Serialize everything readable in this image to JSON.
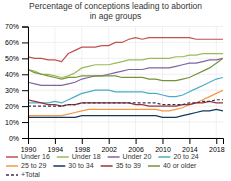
{
  "chart_data": {
    "type": "line",
    "title": "Percentage of conceptions leading to abortion\nin age groups",
    "x": [
      1990,
      1991,
      1992,
      1993,
      1994,
      1995,
      1996,
      1997,
      1998,
      1999,
      2000,
      2001,
      2002,
      2003,
      2004,
      2005,
      2006,
      2007,
      2008,
      2009,
      2010,
      2011,
      2012,
      2013,
      2014,
      2015,
      2016,
      2017,
      2018,
      2019
    ],
    "series": [
      {
        "name": "Under 16",
        "color": "#c0504d",
        "line_style": "solid",
        "values": [
          51,
          50,
          50,
          49,
          49,
          48,
          53,
          55,
          57,
          57,
          57,
          58,
          58,
          60,
          60,
          62,
          63,
          62,
          63,
          63,
          63,
          63,
          63,
          63,
          63,
          62,
          62,
          62,
          62,
          62
        ]
      },
      {
        "name": "Under 18",
        "color": "#9bbb59",
        "line_style": "solid",
        "values": [
          43,
          42,
          40,
          40,
          39,
          38,
          39,
          41,
          44,
          45,
          46,
          46,
          46,
          47,
          48,
          49,
          49,
          49,
          50,
          50,
          50,
          50,
          51,
          51,
          52,
          52,
          53,
          53,
          53,
          53
        ]
      },
      {
        "name": "Under 20",
        "color": "#8064a2",
        "line_style": "solid",
        "values": [
          35,
          34,
          33,
          33,
          33,
          33,
          34,
          35,
          37,
          38,
          39,
          39,
          40,
          41,
          42,
          43,
          43,
          43,
          44,
          44,
          44,
          44,
          45,
          46,
          47,
          47,
          48,
          49,
          49,
          50
        ]
      },
      {
        "name": "20 to 24",
        "color": "#4bacc6",
        "line_style": "solid",
        "values": [
          22,
          22,
          22,
          22,
          23,
          22,
          24,
          26,
          28,
          29,
          30,
          30,
          30,
          29,
          29,
          29,
          29,
          29,
          28,
          28,
          27,
          26,
          26,
          27,
          29,
          31,
          33,
          35,
          37,
          38
        ]
      },
      {
        "name": "25 to 29",
        "color": "#f79646",
        "line_style": "solid",
        "values": [
          14,
          14,
          14,
          14,
          14,
          14,
          15,
          16,
          17,
          18,
          18,
          18,
          18,
          18,
          18,
          18,
          18,
          18,
          18,
          18,
          17,
          17,
          18,
          19,
          21,
          22,
          24,
          26,
          28,
          30
        ]
      },
      {
        "name": "30 to 34",
        "color": "#17375e",
        "line_style": "solid",
        "values": [
          13,
          13,
          13,
          13,
          13,
          13,
          13,
          13,
          14,
          14,
          14,
          14,
          14,
          14,
          14,
          14,
          14,
          14,
          14,
          14,
          13,
          13,
          13,
          14,
          15,
          16,
          17,
          17,
          18,
          17
        ]
      },
      {
        "name": "35 to 39",
        "color": "#953735",
        "line_style": "solid",
        "values": [
          24,
          23,
          22,
          21,
          21,
          20,
          21,
          21,
          22,
          22,
          22,
          22,
          22,
          22,
          22,
          22,
          21,
          21,
          20,
          20,
          20,
          20,
          20,
          21,
          21,
          22,
          22,
          23,
          22,
          22
        ]
      },
      {
        "name": "40 or older",
        "color": "#76933c",
        "line_style": "solid",
        "values": [
          43,
          41,
          40,
          39,
          38,
          37,
          38,
          38,
          39,
          39,
          39,
          39,
          39,
          39,
          38,
          38,
          38,
          38,
          37,
          37,
          36,
          36,
          36,
          37,
          38,
          40,
          42,
          44,
          47,
          50
        ]
      },
      {
        "name": "+Total",
        "color": "#403152",
        "line_style": "dashed",
        "values": [
          20,
          20,
          20,
          20,
          20,
          20,
          21,
          21,
          22,
          22,
          22,
          22,
          22,
          22,
          22,
          22,
          22,
          22,
          22,
          22,
          21,
          21,
          21,
          21,
          22,
          22,
          23,
          23,
          24,
          24
        ]
      }
    ],
    "xlim": [
      1990,
      2019
    ],
    "xticks": [
      1990,
      1994,
      1998,
      2002,
      2006,
      2010,
      2014,
      2018
    ],
    "ylim": [
      0,
      70
    ],
    "yticks": [
      {
        "value": 0,
        "label": "0%"
      },
      {
        "value": 10,
        "label": "10%"
      },
      {
        "value": 20,
        "label": "20%"
      },
      {
        "value": 30,
        "label": "30%"
      },
      {
        "value": 40,
        "label": "40%"
      },
      {
        "value": 50,
        "label": "50%"
      },
      {
        "value": 60,
        "label": "60%"
      },
      {
        "value": 70,
        "label": "70%"
      }
    ],
    "grid": true,
    "legend": "bottom"
  }
}
